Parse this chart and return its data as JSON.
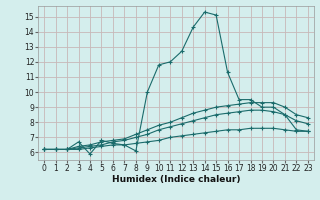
{
  "xlabel": "Humidex (Indice chaleur)",
  "bg_color": "#d4eeed",
  "grid_color": "#c8b8b8",
  "line_color": "#1a6b6b",
  "xlim": [
    -0.5,
    23.5
  ],
  "ylim": [
    5.5,
    15.7
  ],
  "xticks": [
    0,
    1,
    2,
    3,
    4,
    5,
    6,
    7,
    8,
    9,
    10,
    11,
    12,
    13,
    14,
    15,
    16,
    17,
    18,
    19,
    20,
    21,
    22,
    23
  ],
  "yticks": [
    6,
    7,
    8,
    9,
    10,
    11,
    12,
    13,
    14,
    15
  ],
  "curve1_x": [
    0,
    1,
    2,
    3,
    4,
    5,
    6,
    7,
    8,
    9,
    10,
    11,
    12,
    13,
    14,
    15,
    16,
    17,
    18,
    19,
    20,
    21,
    22,
    23
  ],
  "curve1_y": [
    6.2,
    6.2,
    6.2,
    6.7,
    5.9,
    6.8,
    6.6,
    6.5,
    6.1,
    10.0,
    11.8,
    12.0,
    12.7,
    14.3,
    15.3,
    15.1,
    11.3,
    9.5,
    9.5,
    9.0,
    9.0,
    8.5,
    7.5,
    7.4
  ],
  "curve2_x": [
    0,
    1,
    2,
    3,
    4,
    5,
    6,
    7,
    8,
    9,
    10,
    11,
    12,
    13,
    14,
    15,
    16,
    17,
    18,
    19,
    20,
    21,
    22,
    23
  ],
  "curve2_y": [
    6.2,
    6.2,
    6.2,
    6.4,
    6.5,
    6.7,
    6.8,
    6.9,
    7.2,
    7.5,
    7.8,
    8.0,
    8.3,
    8.6,
    8.8,
    9.0,
    9.1,
    9.2,
    9.3,
    9.3,
    9.3,
    9.0,
    8.5,
    8.3
  ],
  "curve3_x": [
    0,
    1,
    2,
    3,
    4,
    5,
    6,
    7,
    8,
    9,
    10,
    11,
    12,
    13,
    14,
    15,
    16,
    17,
    18,
    19,
    20,
    21,
    22,
    23
  ],
  "curve3_y": [
    6.2,
    6.2,
    6.2,
    6.3,
    6.4,
    6.5,
    6.7,
    6.8,
    7.0,
    7.2,
    7.5,
    7.7,
    7.9,
    8.1,
    8.3,
    8.5,
    8.6,
    8.7,
    8.8,
    8.8,
    8.7,
    8.5,
    8.1,
    7.9
  ],
  "curve4_x": [
    0,
    1,
    2,
    3,
    4,
    5,
    6,
    7,
    8,
    9,
    10,
    11,
    12,
    13,
    14,
    15,
    16,
    17,
    18,
    19,
    20,
    21,
    22,
    23
  ],
  "curve4_y": [
    6.2,
    6.2,
    6.2,
    6.2,
    6.3,
    6.4,
    6.5,
    6.5,
    6.6,
    6.7,
    6.8,
    7.0,
    7.1,
    7.2,
    7.3,
    7.4,
    7.5,
    7.5,
    7.6,
    7.6,
    7.6,
    7.5,
    7.4,
    7.4
  ]
}
